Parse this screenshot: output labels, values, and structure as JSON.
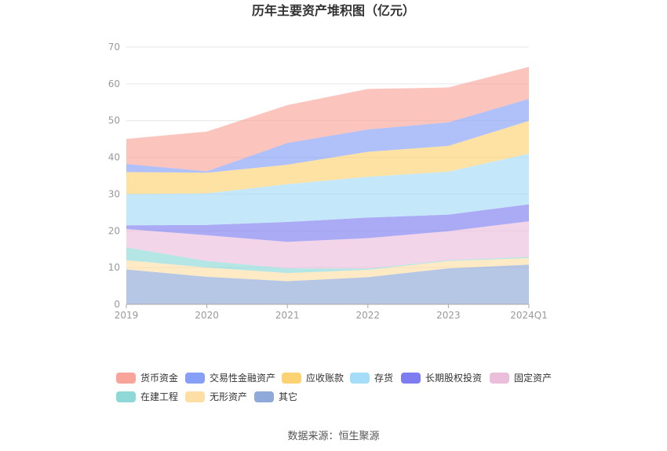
{
  "chart_data": {
    "type": "area",
    "stacked": true,
    "title": "历年主要资产堆积图（亿元）",
    "categories": [
      "2019",
      "2020",
      "2021",
      "2022",
      "2023",
      "2024Q1"
    ],
    "ylim": [
      0,
      70
    ],
    "yticks": [
      0,
      10,
      20,
      30,
      40,
      50,
      60,
      70
    ],
    "grid": true,
    "legend_position": "bottom",
    "series": [
      {
        "name": "其它",
        "color": "#8fa9d8",
        "values": [
          9.5,
          7.5,
          6.3,
          7.4,
          9.8,
          10.8
        ]
      },
      {
        "name": "无形资产",
        "color": "#fddfa6",
        "values": [
          2.5,
          2.5,
          2.2,
          2.0,
          2.0,
          1.8
        ]
      },
      {
        "name": "在建工程",
        "color": "#8ed8d8",
        "values": [
          3.5,
          1.8,
          1.3,
          0.3,
          0.2,
          0.3
        ]
      },
      {
        "name": "固定资产",
        "color": "#ebbedc",
        "values": [
          5.0,
          7.0,
          7.2,
          8.3,
          7.9,
          9.7
        ]
      },
      {
        "name": "长期股权投资",
        "color": "#7d7cf0",
        "values": [
          1.0,
          2.8,
          5.4,
          5.6,
          4.5,
          4.6
        ]
      },
      {
        "name": "存货",
        "color": "#a5dcf8",
        "values": [
          8.5,
          8.6,
          10.3,
          11.1,
          11.7,
          13.8
        ]
      },
      {
        "name": "应收账款",
        "color": "#fdd272",
        "values": [
          6.0,
          5.6,
          5.3,
          6.8,
          7.0,
          8.9
        ]
      },
      {
        "name": "交易性金融资产",
        "color": "#86a0f8",
        "values": [
          2.2,
          0.4,
          5.9,
          6.1,
          6.4,
          6.0
        ]
      },
      {
        "name": "货币资金",
        "color": "#f9a49a",
        "values": [
          6.8,
          10.8,
          10.3,
          11.0,
          9.5,
          8.7
        ]
      }
    ],
    "legend_order": [
      "货币资金",
      "交易性金融资产",
      "应收账款",
      "存货",
      "长期股权投资",
      "固定资产",
      "在建工程",
      "无形资产",
      "其它"
    ]
  },
  "source_text": "数据来源：恒生聚源"
}
